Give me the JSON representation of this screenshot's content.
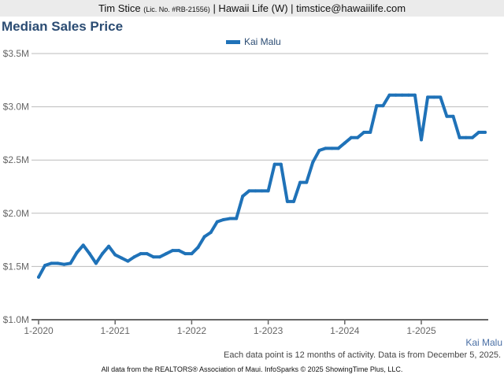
{
  "header": {
    "name": "Tim Stice",
    "license": "(Lic. No. #RB-21556)",
    "rest": "| Hawaii Life (W) | timstice@hawaiilife.com"
  },
  "footer": {
    "series_label": "Kai Malu",
    "note": "Each data point is 12 months of activity. Data is from December 5, 2025.",
    "credit": "All data from the REALTORS® Association of Maui. InfoSparks © 2025 ShowingTime Plus, LLC."
  },
  "chart_data": {
    "type": "line",
    "title": "Median Sales Price",
    "legend": {
      "position": "top-center",
      "entries": [
        "Kai Malu"
      ]
    },
    "color": "#1f72b8",
    "grid": true,
    "ylim": [
      1.0,
      3.5
    ],
    "yticks": [
      {
        "v": 1.0,
        "label": "$1.0M"
      },
      {
        "v": 1.5,
        "label": "$1.5M"
      },
      {
        "v": 2.0,
        "label": "$2.0M"
      },
      {
        "v": 2.5,
        "label": "$2.5M"
      },
      {
        "v": 3.0,
        "label": "$3.0M"
      },
      {
        "v": 3.5,
        "label": "$3.5M"
      }
    ],
    "xticks": [
      {
        "m": 0,
        "label": "1-2020"
      },
      {
        "m": 12,
        "label": "1-2021"
      },
      {
        "m": 24,
        "label": "1-2022"
      },
      {
        "m": 36,
        "label": "1-2023"
      },
      {
        "m": 48,
        "label": "1-2024"
      },
      {
        "m": 60,
        "label": "1-2025"
      }
    ],
    "x_start": "2020-01",
    "x_end": "2025-11",
    "x_step": "month",
    "series": [
      {
        "name": "Kai Malu",
        "values": [
          1.4,
          1.51,
          1.53,
          1.53,
          1.52,
          1.53,
          1.63,
          1.7,
          1.62,
          1.53,
          1.62,
          1.69,
          1.61,
          1.58,
          1.55,
          1.59,
          1.62,
          1.62,
          1.59,
          1.59,
          1.62,
          1.65,
          1.65,
          1.62,
          1.62,
          1.68,
          1.78,
          1.82,
          1.92,
          1.94,
          1.95,
          1.95,
          2.16,
          2.21,
          2.21,
          2.21,
          2.21,
          2.46,
          2.46,
          2.11,
          2.11,
          2.29,
          2.29,
          2.48,
          2.59,
          2.61,
          2.61,
          2.61,
          2.66,
          2.71,
          2.71,
          2.76,
          2.76,
          3.01,
          3.01,
          3.11,
          3.11,
          3.11,
          3.11,
          3.11,
          2.69,
          3.09,
          3.09,
          3.09,
          2.91,
          2.91,
          2.71,
          2.71,
          2.71,
          2.76,
          2.76
        ]
      }
    ]
  }
}
